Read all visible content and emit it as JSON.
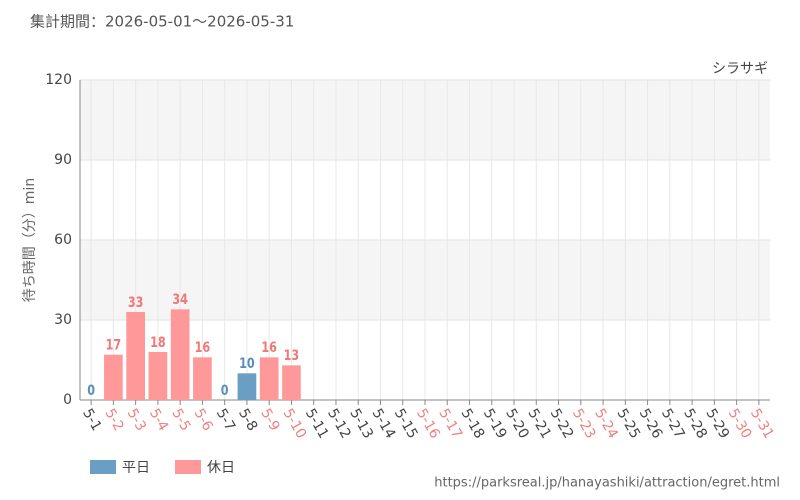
{
  "chart_data": {
    "type": "bar",
    "subtitle": "集計期間：2026-05-01～2026-05-31",
    "title": "シラサギ",
    "y_label": "待ち時間（分）min",
    "source": "https://parksreal.jp/hanayashiki/attraction/egret.html",
    "categories": [
      "5-1",
      "5-2",
      "5-3",
      "5-4",
      "5-5",
      "5-6",
      "5-7",
      "5-8",
      "5-9",
      "5-10",
      "5-11",
      "5-12",
      "5-13",
      "5-14",
      "5-15",
      "5-16",
      "5-17",
      "5-18",
      "5-19",
      "5-20",
      "5-21",
      "5-22",
      "5-23",
      "5-24",
      "5-25",
      "5-26",
      "5-27",
      "5-28",
      "5-29",
      "5-30",
      "5-31"
    ],
    "category_colors": [
      "#444444",
      "#f08080",
      "#f08080",
      "#f08080",
      "#f08080",
      "#f08080",
      "#444444",
      "#444444",
      "#f08080",
      "#f08080",
      "#444444",
      "#444444",
      "#444444",
      "#444444",
      "#444444",
      "#f08080",
      "#f08080",
      "#444444",
      "#444444",
      "#444444",
      "#444444",
      "#444444",
      "#f08080",
      "#f08080",
      "#444444",
      "#444444",
      "#444444",
      "#444444",
      "#444444",
      "#f08080",
      "#f08080"
    ],
    "series": [
      {
        "name": "平日",
        "color": "#6a9ec5",
        "label_color": "#5b8db8",
        "values": [
          0,
          null,
          null,
          null,
          null,
          null,
          0,
          10,
          null,
          null,
          null,
          null,
          null,
          null,
          null,
          null,
          null,
          null,
          null,
          null,
          null,
          null,
          null,
          null,
          null,
          null,
          null,
          null,
          null,
          null,
          null
        ]
      },
      {
        "name": "休日",
        "color": "#ff9999",
        "label_color": "#f07878",
        "values": [
          null,
          17,
          33,
          18,
          34,
          16,
          null,
          null,
          16,
          13,
          null,
          null,
          null,
          null,
          null,
          null,
          null,
          null,
          null,
          null,
          null,
          null,
          null,
          null,
          null,
          null,
          null,
          null,
          null,
          null,
          null
        ]
      }
    ],
    "ylim": [
      0,
      120
    ],
    "yticks": [
      0,
      30,
      60,
      90,
      120
    ],
    "grid": true
  }
}
